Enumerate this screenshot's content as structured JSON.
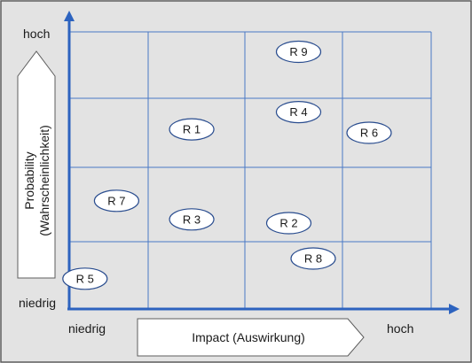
{
  "diagram": {
    "y_axis": {
      "label_line1": "Probability",
      "label_line2": "(Wahrscheinlichkeit)",
      "high": "hoch",
      "low": "niedrig"
    },
    "x_axis": {
      "label": "Impact (Auswirkung)",
      "low": "niedrig",
      "high": "hoch"
    },
    "risks": [
      {
        "label": "R 9",
        "impact": 2.55,
        "probability": 3.7
      },
      {
        "label": "R 1",
        "impact": 1.45,
        "probability": 2.55
      },
      {
        "label": "R 4",
        "impact": 2.55,
        "probability": 2.8
      },
      {
        "label": "R 6",
        "impact": 3.3,
        "probability": 2.5
      },
      {
        "label": "R 7",
        "impact": 0.6,
        "probability": 1.55
      },
      {
        "label": "R 3",
        "impact": 1.45,
        "probability": 1.3
      },
      {
        "label": "R 2",
        "impact": 2.45,
        "probability": 1.25
      },
      {
        "label": "R 8",
        "impact": 2.7,
        "probability": 0.75
      },
      {
        "label": "R 5",
        "impact": 0.2,
        "probability": 0.45
      }
    ],
    "colors": {
      "background": "#e3e3e3",
      "grid": "#4a78c6",
      "axis": "#2d63bf",
      "border": "#5c5c5c"
    }
  }
}
